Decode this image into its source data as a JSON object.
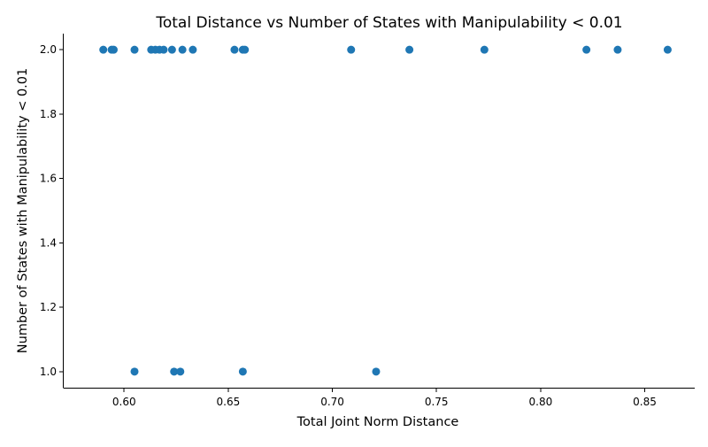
{
  "chart_data": {
    "type": "scatter",
    "title": "Total Distance vs Number of States with Manipulability < 0.01",
    "xlabel": "Total Joint Norm Distance",
    "ylabel": "Number of States with Manipulability < 0.01",
    "xlim": [
      0.571,
      0.874
    ],
    "ylim": [
      0.95,
      2.05
    ],
    "xticks": [
      0.6,
      0.65,
      0.7,
      0.75,
      0.8,
      0.85
    ],
    "xtick_labels": [
      "0.60",
      "0.65",
      "0.70",
      "0.75",
      "0.80",
      "0.85"
    ],
    "yticks": [
      1.0,
      1.2,
      1.4,
      1.6,
      1.8,
      2.0
    ],
    "ytick_labels": [
      "1.0",
      "1.2",
      "1.4",
      "1.6",
      "1.8",
      "2.0"
    ],
    "grid": false,
    "marker_color": "#1f77b4",
    "points": [
      {
        "x": 0.59,
        "y": 2
      },
      {
        "x": 0.594,
        "y": 2
      },
      {
        "x": 0.595,
        "y": 2
      },
      {
        "x": 0.605,
        "y": 2
      },
      {
        "x": 0.613,
        "y": 2
      },
      {
        "x": 0.615,
        "y": 2
      },
      {
        "x": 0.617,
        "y": 2
      },
      {
        "x": 0.619,
        "y": 2
      },
      {
        "x": 0.623,
        "y": 2
      },
      {
        "x": 0.628,
        "y": 2
      },
      {
        "x": 0.633,
        "y": 2
      },
      {
        "x": 0.653,
        "y": 2
      },
      {
        "x": 0.657,
        "y": 2
      },
      {
        "x": 0.658,
        "y": 2
      },
      {
        "x": 0.709,
        "y": 2
      },
      {
        "x": 0.737,
        "y": 2
      },
      {
        "x": 0.773,
        "y": 2
      },
      {
        "x": 0.822,
        "y": 2
      },
      {
        "x": 0.837,
        "y": 2
      },
      {
        "x": 0.861,
        "y": 2
      },
      {
        "x": 0.605,
        "y": 1
      },
      {
        "x": 0.624,
        "y": 1
      },
      {
        "x": 0.627,
        "y": 1
      },
      {
        "x": 0.657,
        "y": 1
      },
      {
        "x": 0.721,
        "y": 1
      }
    ]
  }
}
